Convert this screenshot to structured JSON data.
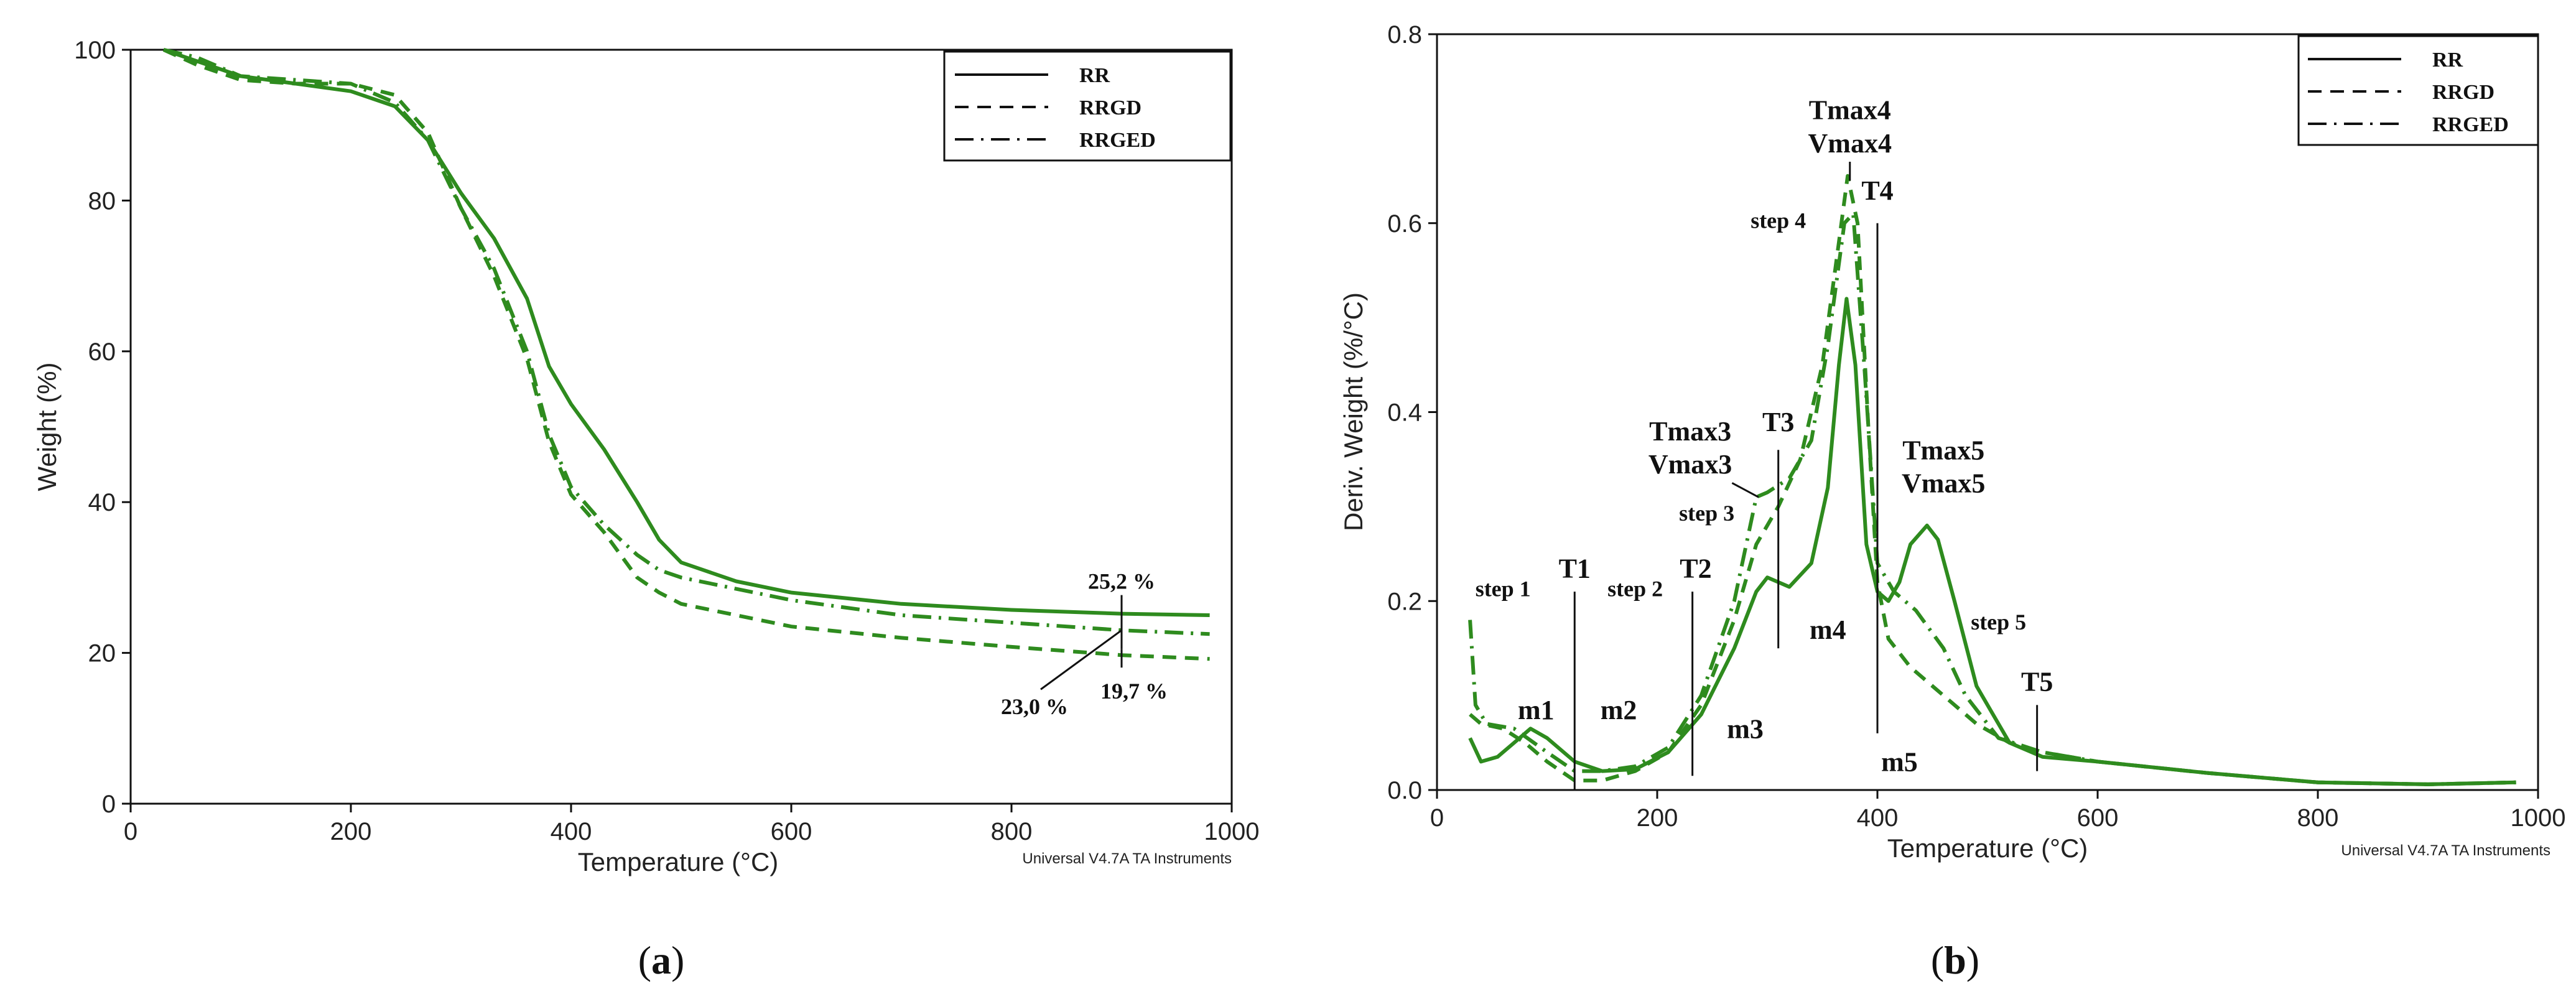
{
  "panel_a": {
    "caption_letter": "a",
    "footer": "Universal V4.7A TA Instruments"
  },
  "panel_b": {
    "caption_letter": "b",
    "footer": "Universal V4.7A TA Instruments"
  },
  "colors": {
    "line": "#2e8b1e",
    "frame": "#111111",
    "annotation": "#111111"
  },
  "chart_data": [
    {
      "type": "line",
      "title": "",
      "xlabel": "Temperature (°C)",
      "ylabel": "Weight (%)",
      "xlim": [
        0,
        1000
      ],
      "ylim": [
        0,
        100
      ],
      "xticks": [
        0,
        200,
        400,
        600,
        800,
        1000
      ],
      "yticks": [
        0,
        20,
        40,
        60,
        80,
        100
      ],
      "legend_position": "top-right",
      "series": [
        {
          "name": "RR",
          "style": "solid",
          "points": [
            [
              30,
              100
            ],
            [
              60,
              98.5
            ],
            [
              100,
              96.5
            ],
            [
              150,
              95.5
            ],
            [
              200,
              94.5
            ],
            [
              240,
              92.5
            ],
            [
              270,
              88
            ],
            [
              300,
              81
            ],
            [
              330,
              75
            ],
            [
              360,
              67
            ],
            [
              380,
              58
            ],
            [
              400,
              53
            ],
            [
              430,
              47
            ],
            [
              460,
              40
            ],
            [
              480,
              35
            ],
            [
              500,
              32
            ],
            [
              550,
              29.5
            ],
            [
              600,
              28
            ],
            [
              700,
              26.5
            ],
            [
              800,
              25.7
            ],
            [
              900,
              25.2
            ],
            [
              980,
              25
            ]
          ]
        },
        {
          "name": "RRGD",
          "style": "dashed",
          "points": [
            [
              30,
              100
            ],
            [
              60,
              98
            ],
            [
              100,
              96
            ],
            [
              150,
              95.5
            ],
            [
              200,
              95.5
            ],
            [
              240,
              94
            ],
            [
              270,
              89
            ],
            [
              300,
              79
            ],
            [
              330,
              70
            ],
            [
              360,
              59
            ],
            [
              380,
              48
            ],
            [
              400,
              41
            ],
            [
              430,
              36
            ],
            [
              460,
              30
            ],
            [
              480,
              28
            ],
            [
              500,
              26.5
            ],
            [
              600,
              23.5
            ],
            [
              700,
              22
            ],
            [
              800,
              20.8
            ],
            [
              900,
              19.7
            ],
            [
              980,
              19.2
            ]
          ]
        },
        {
          "name": "RRGED",
          "style": "dash-dot",
          "points": [
            [
              30,
              100
            ],
            [
              60,
              99
            ],
            [
              100,
              96.5
            ],
            [
              150,
              96
            ],
            [
              200,
              95.5
            ],
            [
              240,
              93
            ],
            [
              270,
              88
            ],
            [
              300,
              79
            ],
            [
              330,
              71
            ],
            [
              360,
              60
            ],
            [
              380,
              49
            ],
            [
              400,
              42
            ],
            [
              430,
              37
            ],
            [
              460,
              33
            ],
            [
              480,
              31
            ],
            [
              500,
              30
            ],
            [
              600,
              27
            ],
            [
              700,
              25
            ],
            [
              800,
              24
            ],
            [
              900,
              23
            ],
            [
              980,
              22.5
            ]
          ]
        }
      ],
      "annotations": [
        {
          "text": "25,2 %",
          "x": 900,
          "y": 25.2
        },
        {
          "text": "23,0 %",
          "x": 900,
          "y": 23.0
        },
        {
          "text": "19,7 %",
          "x": 900,
          "y": 19.7
        }
      ]
    },
    {
      "type": "line",
      "title": "",
      "xlabel": "Temperature (°C)",
      "ylabel": "Deriv. Weight (%/°C)",
      "xlim": [
        0,
        1000
      ],
      "ylim": [
        0,
        0.8
      ],
      "xticks": [
        0,
        200,
        400,
        600,
        800,
        1000
      ],
      "yticks": [
        0.0,
        0.2,
        0.4,
        0.6,
        0.8
      ],
      "legend_position": "top-right",
      "series": [
        {
          "name": "RR",
          "style": "solid",
          "points": [
            [
              30,
              0.055
            ],
            [
              40,
              0.03
            ],
            [
              55,
              0.035
            ],
            [
              70,
              0.05
            ],
            [
              85,
              0.065
            ],
            [
              100,
              0.055
            ],
            [
              125,
              0.03
            ],
            [
              150,
              0.02
            ],
            [
              180,
              0.022
            ],
            [
              210,
              0.04
            ],
            [
              240,
              0.08
            ],
            [
              270,
              0.15
            ],
            [
              290,
              0.21
            ],
            [
              300,
              0.225
            ],
            [
              320,
              0.215
            ],
            [
              340,
              0.24
            ],
            [
              355,
              0.32
            ],
            [
              365,
              0.45
            ],
            [
              372,
              0.52
            ],
            [
              380,
              0.45
            ],
            [
              390,
              0.26
            ],
            [
              400,
              0.21
            ],
            [
              410,
              0.2
            ],
            [
              420,
              0.22
            ],
            [
              430,
              0.26
            ],
            [
              445,
              0.28
            ],
            [
              455,
              0.265
            ],
            [
              470,
              0.2
            ],
            [
              490,
              0.11
            ],
            [
              505,
              0.08
            ],
            [
              520,
              0.05
            ],
            [
              550,
              0.035
            ],
            [
              600,
              0.03
            ],
            [
              700,
              0.018
            ],
            [
              800,
              0.008
            ],
            [
              900,
              0.006
            ],
            [
              980,
              0.008
            ]
          ]
        },
        {
          "name": "RRGD",
          "style": "dashed",
          "points": [
            [
              30,
              0.08
            ],
            [
              40,
              0.07
            ],
            [
              60,
              0.065
            ],
            [
              80,
              0.05
            ],
            [
              100,
              0.03
            ],
            [
              125,
              0.01
            ],
            [
              150,
              0.01
            ],
            [
              180,
              0.02
            ],
            [
              210,
              0.04
            ],
            [
              240,
              0.09
            ],
            [
              270,
              0.18
            ],
            [
              290,
              0.26
            ],
            [
              310,
              0.3
            ],
            [
              330,
              0.35
            ],
            [
              350,
              0.45
            ],
            [
              365,
              0.58
            ],
            [
              373,
              0.65
            ],
            [
              382,
              0.6
            ],
            [
              392,
              0.38
            ],
            [
              400,
              0.22
            ],
            [
              410,
              0.16
            ],
            [
              430,
              0.13
            ],
            [
              460,
              0.1
            ],
            [
              490,
              0.07
            ],
            [
              520,
              0.05
            ],
            [
              550,
              0.04
            ],
            [
              600,
              0.03
            ],
            [
              700,
              0.018
            ],
            [
              800,
              0.008
            ],
            [
              900,
              0.006
            ],
            [
              980,
              0.008
            ]
          ]
        },
        {
          "name": "RRGED",
          "style": "dash-dot",
          "points": [
            [
              30,
              0.18
            ],
            [
              35,
              0.09
            ],
            [
              45,
              0.07
            ],
            [
              70,
              0.065
            ],
            [
              100,
              0.04
            ],
            [
              125,
              0.02
            ],
            [
              150,
              0.02
            ],
            [
              180,
              0.025
            ],
            [
              210,
              0.045
            ],
            [
              240,
              0.1
            ],
            [
              270,
              0.2
            ],
            [
              290,
              0.31
            ],
            [
              300,
              0.315
            ],
            [
              320,
              0.33
            ],
            [
              340,
              0.37
            ],
            [
              355,
              0.47
            ],
            [
              370,
              0.6
            ],
            [
              378,
              0.61
            ],
            [
              388,
              0.45
            ],
            [
              400,
              0.24
            ],
            [
              415,
              0.21
            ],
            [
              435,
              0.19
            ],
            [
              460,
              0.15
            ],
            [
              480,
              0.1
            ],
            [
              510,
              0.055
            ],
            [
              550,
              0.04
            ],
            [
              600,
              0.03
            ],
            [
              700,
              0.018
            ],
            [
              800,
              0.008
            ],
            [
              900,
              0.006
            ],
            [
              980,
              0.008
            ]
          ]
        }
      ],
      "annotations": [
        {
          "text": "step 1",
          "x": 60,
          "y": 0.205
        },
        {
          "text": "m1",
          "x": 90,
          "y": 0.075
        },
        {
          "text": "T1",
          "x": 125,
          "y": 0.225
        },
        {
          "text": "step 2",
          "x": 180,
          "y": 0.205
        },
        {
          "text": "m2",
          "x": 165,
          "y": 0.075
        },
        {
          "text": "T2",
          "x": 235,
          "y": 0.225
        },
        {
          "text": "m3",
          "x": 280,
          "y": 0.055
        },
        {
          "text": "Tmax3",
          "x": 230,
          "y": 0.37
        },
        {
          "text": "Vmax3",
          "x": 230,
          "y": 0.335
        },
        {
          "text": "step 3",
          "x": 245,
          "y": 0.285
        },
        {
          "text": "T3",
          "x": 310,
          "y": 0.38
        },
        {
          "text": "m4",
          "x": 355,
          "y": 0.16
        },
        {
          "text": "step 4",
          "x": 310,
          "y": 0.595
        },
        {
          "text": "Tmax4",
          "x": 375,
          "y": 0.71
        },
        {
          "text": "Vmax4",
          "x": 375,
          "y": 0.675
        },
        {
          "text": "T4",
          "x": 400,
          "y": 0.625
        },
        {
          "text": "Tmax5",
          "x": 460,
          "y": 0.35
        },
        {
          "text": "Vmax5",
          "x": 460,
          "y": 0.315
        },
        {
          "text": "step 5",
          "x": 510,
          "y": 0.17
        },
        {
          "text": "m5",
          "x": 420,
          "y": 0.02
        },
        {
          "text": "T5",
          "x": 545,
          "y": 0.105
        }
      ]
    }
  ]
}
